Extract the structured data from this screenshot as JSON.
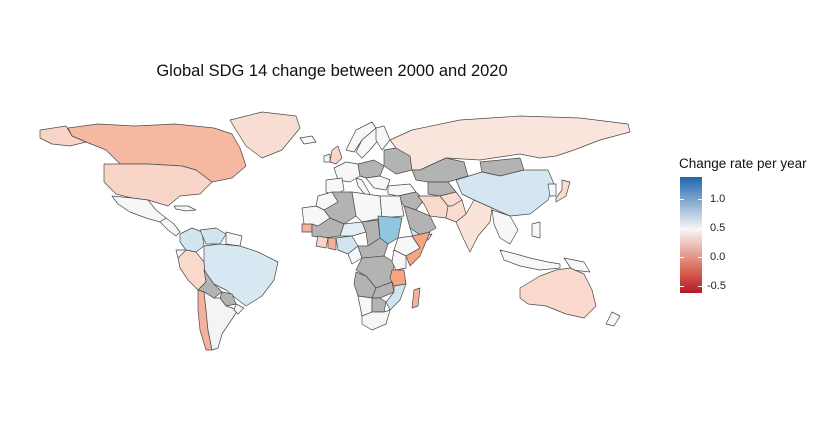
{
  "title": "Global SDG 14 change between 2000 and 2020",
  "legend": {
    "title": "Change rate per year",
    "ticks": [
      "1.0",
      "0.5",
      "0.0",
      "-0.5"
    ],
    "colors": [
      "#2166ac",
      "#f7f7f7",
      "#d6604d",
      "#b2182b"
    ]
  },
  "no_data_color": "#b3b3b3",
  "regions": {
    "canada": "#f5b9a2",
    "greenland": "#f8ddd3",
    "usa": "#f8d5c6",
    "mexico": "#f6f6f6",
    "central_america": "#f7f7f7",
    "cuba": "#f7f7f7",
    "colombia": "#d1e5f0",
    "venezuela": "#d1e5f0",
    "guianas": "#f7f7f7",
    "ecuador": "#f7f7f7",
    "peru": "#f8d9cc",
    "brazil": "#d8e8f2",
    "bolivia": "#b3b3b3",
    "paraguay": "#b3b3b3",
    "chile": "#f4b29c",
    "argentina": "#f4f4f4",
    "uruguay": "#f7f7f7",
    "iceland": "#f7f7f7",
    "uk": "#f8d5c6",
    "ireland": "#f7f7f7",
    "norway": "#f7f7f7",
    "sweden": "#f7f7f7",
    "finland": "#f7f7f7",
    "western_europe": "#f7f7f7",
    "central_europe": "#b3b3b3",
    "eastern_europe": "#b3b3b3",
    "balkans": "#f7f7f7",
    "italy": "#f7f7f7",
    "iberia": "#f7f7f7",
    "turkey": "#f7f7f7",
    "russia": "#fae5dc",
    "kazakhstan": "#b3b3b3",
    "central_asia": "#b3b3b3",
    "mongolia": "#b3b3b3",
    "china": "#d4e6f1",
    "middle_east": "#b3b3b3",
    "saudi_arabia": "#b3b3b3",
    "iran": "#f8d9cc",
    "afghanistan": "#f8dcd0",
    "pakistan": "#f8dcd0",
    "india": "#fae3d9",
    "southeast_asia": "#f7f7f7",
    "indonesia": "#f7f7f7",
    "philippines": "#f7f7f7",
    "japan": "#f8dcd0",
    "korea": "#f7f7f7",
    "australia": "#f8d9cc",
    "new_zealand": "#f7f7f7",
    "png": "#f7f7f7",
    "morocco": "#f7f7f7",
    "algeria": "#b3b3b3",
    "libya": "#f7f7f7",
    "egypt": "#f7f7f7",
    "mauritania": "#f7f7f7",
    "west_africa": "#b3b3b3",
    "senegal": "#f4b29c",
    "ivory_coast": "#f8d5c6",
    "ghana": "#f4b29c",
    "nigeria": "#d1e5f0",
    "niger": "#e6eff5",
    "chad": "#b3b3b3",
    "sudan": "#92c5de",
    "ethiopia": "#f7f7f7",
    "somalia": "#f4a582",
    "yemen": "#d1e5f0",
    "central_africa": "#b3b3b3",
    "drc": "#b3b3b3",
    "cameroon": "#f7f7f7",
    "kenya": "#f7f7f7",
    "tanzania": "#f4a582",
    "angola": "#b3b3b3",
    "zambia": "#b3b3b3",
    "mozambique": "#d1e5f0",
    "namibia": "#f7f7f7",
    "botswana": "#b3b3b3",
    "south_africa": "#f7f7f7",
    "madagascar": "#f4b29c"
  }
}
